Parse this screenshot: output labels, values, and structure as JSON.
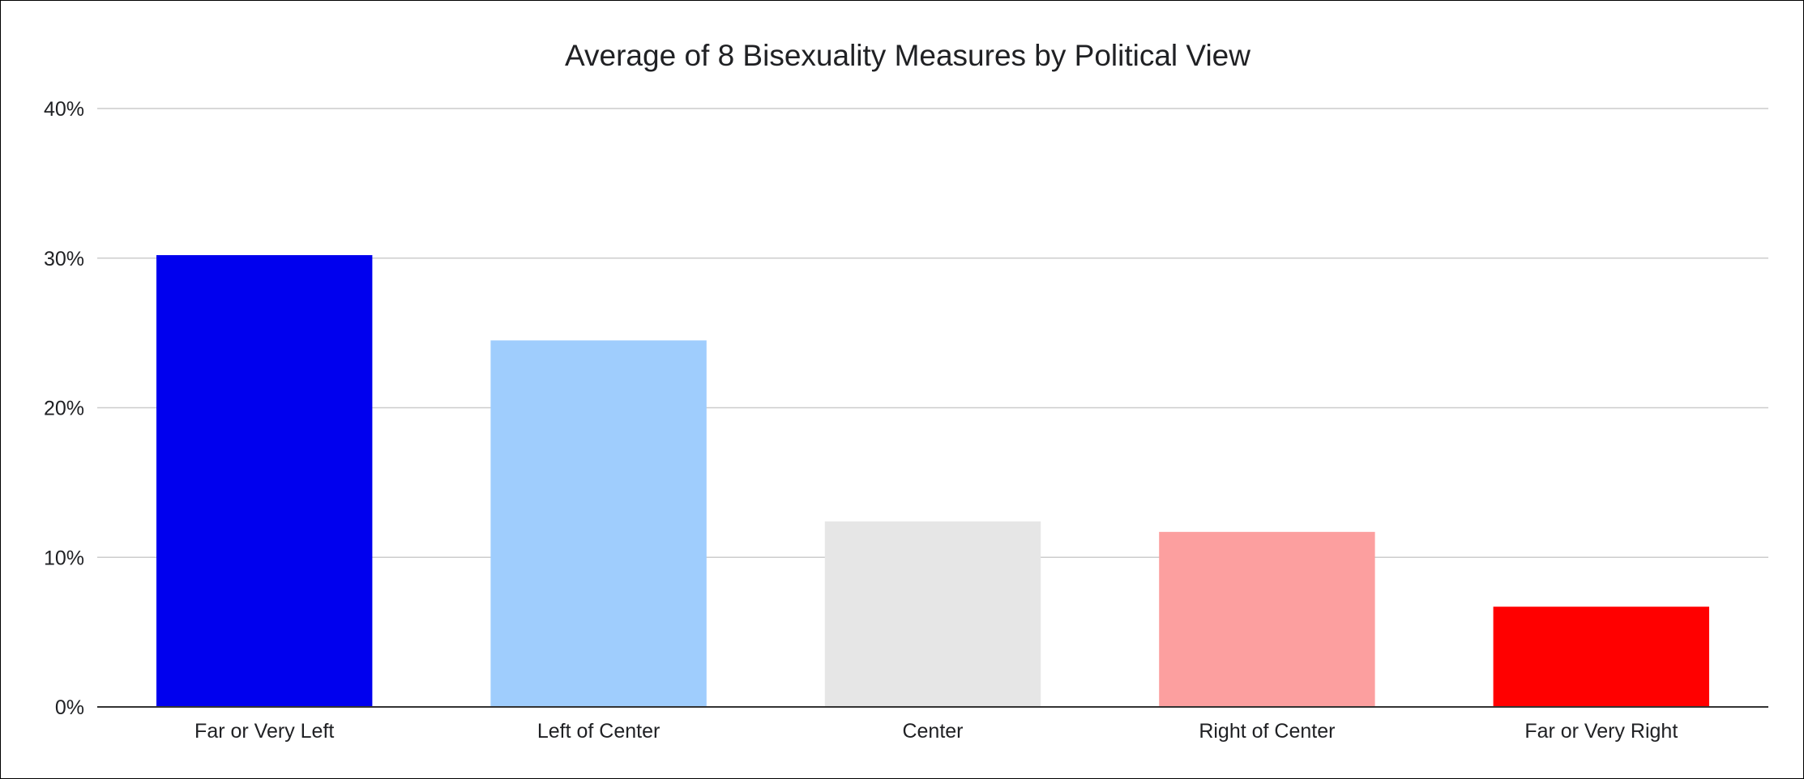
{
  "chart_data": {
    "type": "bar",
    "title": "Average of 8 Bisexuality Measures by Political View",
    "xlabel": "",
    "ylabel": "",
    "categories": [
      "Far or Very Left",
      "Left of Center",
      "Center",
      "Right of Center",
      "Far or Very Right"
    ],
    "values": [
      30.2,
      24.5,
      12.4,
      11.7,
      6.7
    ],
    "colors": [
      "#0000ee",
      "#9fcdfd",
      "#e6e6e6",
      "#fc9f9f",
      "#ff0000"
    ],
    "ylim": [
      0,
      40
    ],
    "yticks": [
      0,
      10,
      20,
      30,
      40
    ],
    "ytick_labels": [
      "0%",
      "10%",
      "20%",
      "30%",
      "40%"
    ],
    "grid": true,
    "legend": "none"
  }
}
